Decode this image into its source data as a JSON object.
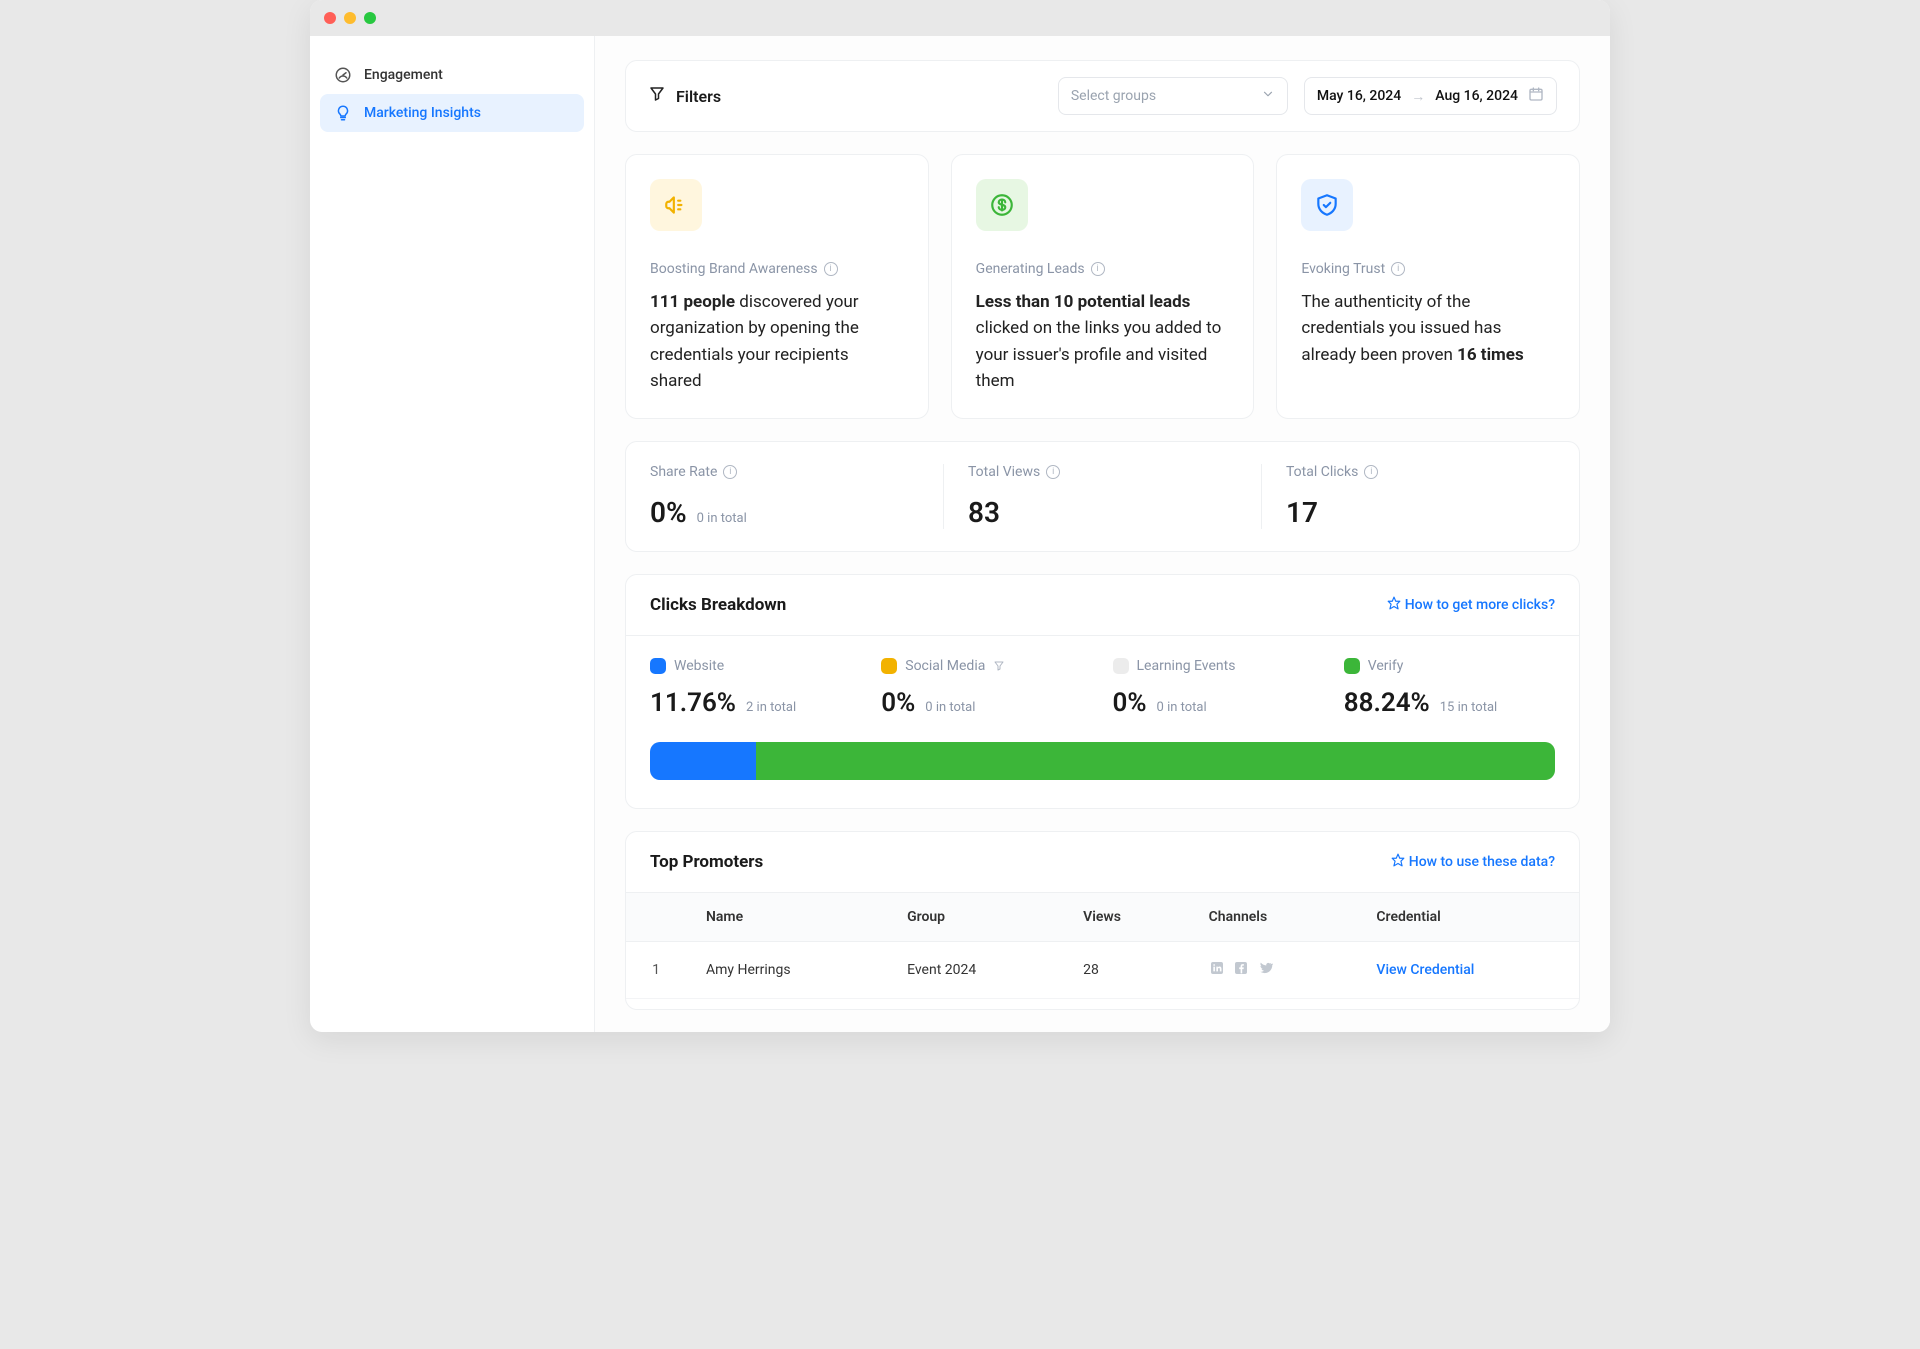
{
  "sidebar": {
    "items": [
      {
        "label": "Engagement"
      },
      {
        "label": "Marketing Insights"
      }
    ]
  },
  "filters": {
    "title": "Filters",
    "groups_placeholder": "Select groups",
    "date_from": "May 16, 2024",
    "date_to": "Aug 16, 2024"
  },
  "insights": {
    "brand": {
      "label": "Boosting Brand Awareness",
      "icon_bg": "#fff6de",
      "icon_stroke": "#f2b200",
      "bold": "111 people",
      "rest": " discovered your organization by opening the credentials your recipients shared"
    },
    "leads": {
      "label": "Generating Leads",
      "icon_bg": "#e7f7e3",
      "icon_stroke": "#3cb639",
      "bold": "Less than 10 potential leads",
      "rest": " clicked on the links you added to your issuer's profile and visited them"
    },
    "trust": {
      "label": "Evoking Trust",
      "icon_bg": "#e8f2ff",
      "icon_stroke": "#1677ff",
      "pre": "The authenticity of the credentials you issued has already been proven ",
      "bold": "16 times"
    }
  },
  "stats": {
    "share_rate": {
      "label": "Share Rate",
      "value": "0%",
      "sub": "0 in total"
    },
    "total_views": {
      "label": "Total Views",
      "value": "83"
    },
    "total_clicks": {
      "label": "Total Clicks",
      "value": "17"
    }
  },
  "breakdown": {
    "title": "Clicks Breakdown",
    "help": "How to get more clicks?",
    "items": [
      {
        "label": "Website",
        "color": "#1677ff",
        "pct": "11.76%",
        "total": "2 in total",
        "width": 11.76
      },
      {
        "label": "Social Media",
        "color": "#f2b200",
        "pct": "0%",
        "total": "0 in total",
        "width": 0,
        "has_filter_icon": true
      },
      {
        "label": "Learning Events",
        "color": "#ececec",
        "pct": "0%",
        "total": "0 in total",
        "width": 0
      },
      {
        "label": "Verify",
        "color": "#3cb639",
        "pct": "88.24%",
        "total": "15 in total",
        "width": 88.24
      }
    ]
  },
  "promoters": {
    "title": "Top Promoters",
    "help": "How to use these data?",
    "columns": [
      "",
      "Name",
      "Group",
      "Views",
      "Channels",
      "Credential"
    ],
    "rows": [
      {
        "idx": "1",
        "name": "Amy Herrings",
        "group": "Event 2024",
        "views": "28",
        "credential": "View Credential"
      }
    ]
  }
}
